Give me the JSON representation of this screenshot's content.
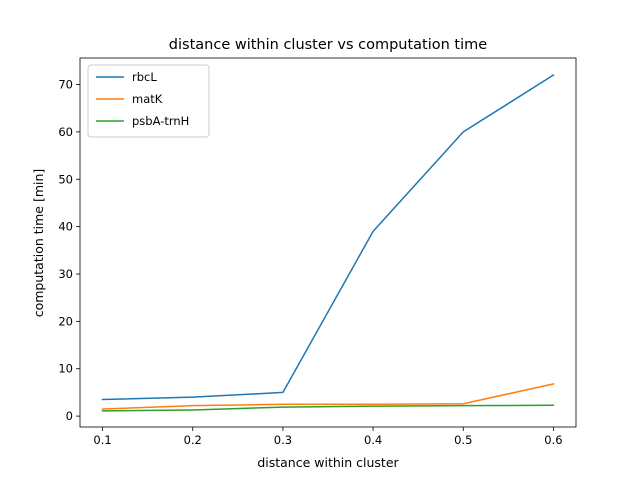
{
  "chart_data": {
    "type": "line",
    "title": "distance within cluster vs computation time",
    "xlabel": "distance within cluster",
    "ylabel": "computation time [min]",
    "x": [
      0.1,
      0.2,
      0.3,
      0.4,
      0.5,
      0.6
    ],
    "xlim": [
      0.075,
      0.625
    ],
    "ylim": [
      -2.3,
      75.6
    ],
    "xticks": [
      0.1,
      0.2,
      0.3,
      0.4,
      0.5,
      0.6
    ],
    "xtick_labels": [
      "0.1",
      "0.2",
      "0.3",
      "0.4",
      "0.5",
      "0.6"
    ],
    "yticks": [
      0,
      10,
      20,
      30,
      40,
      50,
      60,
      70
    ],
    "ytick_labels": [
      "0",
      "10",
      "20",
      "30",
      "40",
      "50",
      "60",
      "70"
    ],
    "grid": false,
    "legend_position": "top-left",
    "series": [
      {
        "name": "rbcL",
        "color": "#1f77b4",
        "values": [
          3.5,
          4.0,
          5.0,
          39.0,
          60.0,
          72.0
        ]
      },
      {
        "name": "matK",
        "color": "#ff7f0e",
        "values": [
          1.5,
          2.2,
          2.5,
          2.5,
          2.6,
          6.8
        ]
      },
      {
        "name": "psbA-trnH",
        "color": "#2ca02c",
        "values": [
          1.1,
          1.3,
          1.9,
          2.1,
          2.2,
          2.3
        ]
      }
    ]
  }
}
